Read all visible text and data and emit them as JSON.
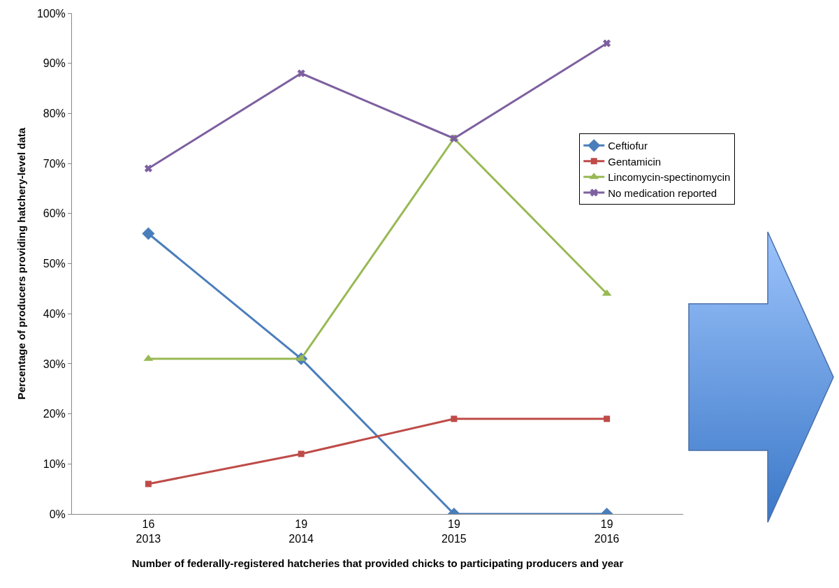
{
  "chart_data": {
    "type": "line",
    "xlabel": "Number of federally-registered hatcheries that provided chicks to participating producers and year",
    "ylabel": "Percentage of producers providing hatchery-level data",
    "categories": [
      "16\n2013",
      "19\n2014",
      "19\n2015",
      "19\n2016"
    ],
    "series": [
      {
        "name": "Ceftiofur",
        "color": "#4a7ebb",
        "marker": "diamond",
        "values": [
          56,
          31,
          0,
          0
        ]
      },
      {
        "name": "Gentamicin",
        "color": "#be4b48",
        "marker": "square",
        "values": [
          6,
          12,
          19,
          19
        ]
      },
      {
        "name": "Lincomycin-spectinomycin",
        "color": "#98b954",
        "marker": "triangle",
        "values": [
          31,
          31,
          75,
          44
        ]
      },
      {
        "name": "No medication reported",
        "color": "#7d60a0",
        "marker": "cross",
        "values": [
          69,
          88,
          75,
          94
        ]
      }
    ],
    "ylim": [
      0,
      100
    ],
    "yticks": [
      {
        "value": 0,
        "label": "0%"
      },
      {
        "value": 10,
        "label": "10%"
      },
      {
        "value": 20,
        "label": "20%"
      },
      {
        "value": 30,
        "label": "30%"
      },
      {
        "value": 40,
        "label": "40%"
      },
      {
        "value": 50,
        "label": "50%"
      },
      {
        "value": 60,
        "label": "60%"
      },
      {
        "value": 70,
        "label": "70%"
      },
      {
        "value": 80,
        "label": "80%"
      },
      {
        "value": 90,
        "label": "90%"
      },
      {
        "value": 100,
        "label": "100%"
      }
    ],
    "legend": "right",
    "line_style": "solid"
  }
}
